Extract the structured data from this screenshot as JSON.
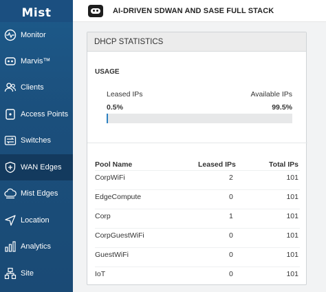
{
  "sidebar": {
    "logo": "Mist",
    "items": [
      {
        "label": "Monitor",
        "icon": "monitor-icon",
        "active": false
      },
      {
        "label": "Marvis™",
        "icon": "marvis-icon",
        "active": false
      },
      {
        "label": "Clients",
        "icon": "clients-icon",
        "active": false
      },
      {
        "label": "Access Points",
        "icon": "access-point-icon",
        "active": false
      },
      {
        "label": "Switches",
        "icon": "switch-icon",
        "active": false
      },
      {
        "label": "WAN Edges",
        "icon": "wan-edge-icon",
        "active": true
      },
      {
        "label": "Mist Edges",
        "icon": "mist-edge-icon",
        "active": false
      },
      {
        "label": "Location",
        "icon": "location-icon",
        "active": false
      },
      {
        "label": "Analytics",
        "icon": "analytics-icon",
        "active": false
      },
      {
        "label": "Site",
        "icon": "site-icon",
        "active": false
      }
    ]
  },
  "header": {
    "title": "AI-DRIVEN SDWAN AND SASE FULL STACK",
    "badge_icon": "site-badge-icon"
  },
  "card": {
    "title": "DHCP STATISTICS",
    "usage": {
      "title": "USAGE",
      "leased_label": "Leased IPs",
      "leased_value": "0.5%",
      "available_label": "Available IPs",
      "available_value": "99.5%",
      "leased_fraction": 0.005
    },
    "table": {
      "headers": [
        "Pool Name",
        "Leased IPs",
        "Total IPs"
      ],
      "rows": [
        [
          "CorpWiFi",
          "2",
          "101"
        ],
        [
          "EdgeCompute",
          "0",
          "101"
        ],
        [
          "Corp",
          "1",
          "101"
        ],
        [
          "CorpGuestWiFi",
          "0",
          "101"
        ],
        [
          "GuestWiFi",
          "0",
          "101"
        ],
        [
          "IoT",
          "0",
          "101"
        ]
      ]
    }
  },
  "colors": {
    "sidebar_bg": "#1b4f7c",
    "sidebar_active": "#133a5e",
    "bar_fill": "#2a7fc1",
    "bar_track": "#e7e8e9"
  }
}
